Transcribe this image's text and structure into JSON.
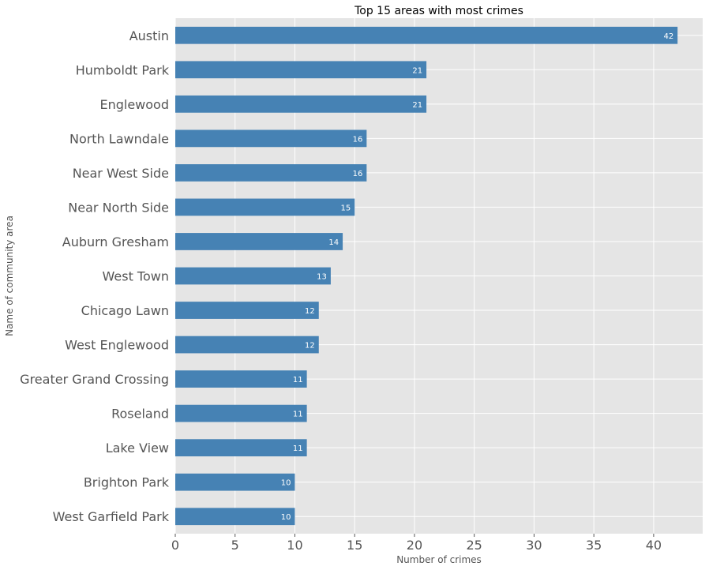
{
  "chart_data": {
    "type": "bar",
    "orientation": "horizontal",
    "title": "Top 15 areas with most crimes",
    "xlabel": "Number of crimes",
    "ylabel": "Name of community area",
    "categories": [
      "Austin",
      "Humboldt Park",
      "Englewood",
      "North Lawndale",
      "Near West Side",
      "Near North Side",
      "Auburn Gresham",
      "West Town",
      "Chicago Lawn",
      "West Englewood",
      "Greater Grand Crossing",
      "Roseland",
      "Lake View",
      "Brighton Park",
      "West Garfield Park"
    ],
    "values": [
      42,
      21,
      21,
      16,
      16,
      15,
      14,
      13,
      12,
      12,
      11,
      11,
      11,
      10,
      10
    ],
    "xlim": [
      0,
      44.1
    ],
    "xticks": [
      0,
      5,
      10,
      15,
      20,
      25,
      30,
      35,
      40
    ],
    "grid": true,
    "bar_color": "#4682b4",
    "background_color": "#e5e5e5",
    "data_labels": true
  }
}
